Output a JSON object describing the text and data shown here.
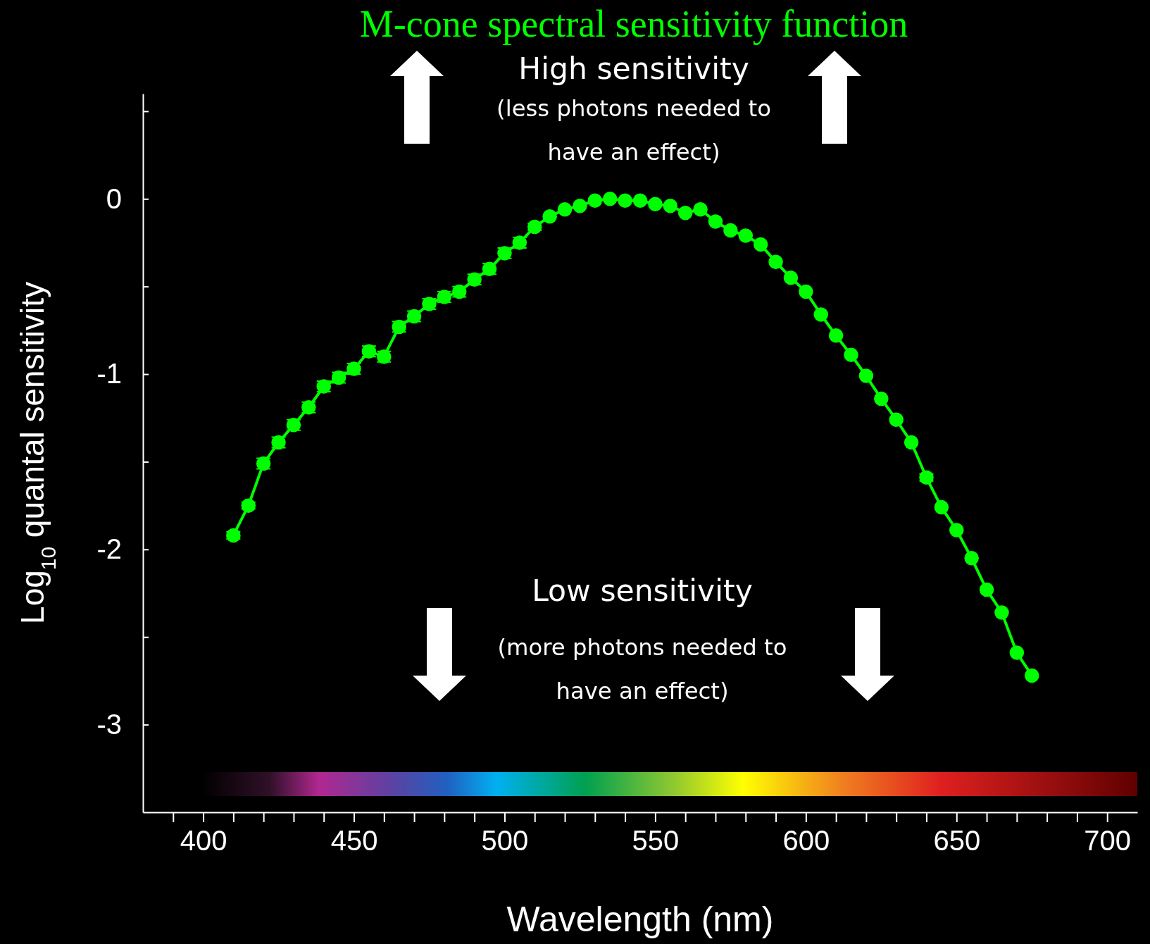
{
  "chart_data": {
    "type": "line",
    "title": "M-cone spectral sensitivity function",
    "xlabel": "Wavelength (nm)",
    "ylabel": "Log$_{10}$ quantal sensitivity",
    "x": [
      410,
      415,
      420,
      425,
      430,
      435,
      440,
      445,
      450,
      455,
      460,
      465,
      470,
      475,
      480,
      485,
      490,
      495,
      500,
      505,
      510,
      515,
      520,
      525,
      530,
      535,
      540,
      545,
      550,
      555,
      560,
      565,
      570,
      575,
      580,
      585,
      590,
      595,
      600,
      605,
      610,
      615,
      620,
      625,
      630,
      635,
      640,
      645,
      650,
      655,
      660,
      665,
      670,
      675
    ],
    "series": [
      {
        "color": "#00ff00",
        "values": [
          -1.92,
          -1.75,
          -1.51,
          -1.39,
          -1.29,
          -1.19,
          -1.07,
          -1.02,
          -0.97,
          -0.87,
          -0.9,
          -0.73,
          -0.67,
          -0.6,
          -0.56,
          -0.53,
          -0.46,
          -0.4,
          -0.31,
          -0.25,
          -0.16,
          -0.1,
          -0.06,
          -0.04,
          -0.01,
          0,
          -0.01,
          -0.01,
          -0.03,
          -0.04,
          -0.08,
          -0.06,
          -0.13,
          -0.18,
          -0.21,
          -0.26,
          -0.36,
          -0.45,
          -0.53,
          -0.66,
          -0.78,
          -0.89,
          -1.01,
          -1.14,
          -1.26,
          -1.39,
          -1.59,
          -1.76,
          -1.89,
          -2.05,
          -2.23,
          -2.36,
          -2.59,
          -2.72
        ],
        "errors": [
          0.02,
          0.02,
          0.03,
          0.03,
          0.03,
          0.03,
          0.03,
          0.03,
          0.03,
          0.03,
          0.03,
          0.03,
          0.03,
          0.03,
          0.03,
          0.03,
          0.03,
          0.03,
          0.03,
          0.03,
          0.02,
          null,
          null,
          null,
          null,
          null,
          null,
          null,
          null,
          null,
          null,
          null,
          null,
          null,
          null,
          null,
          null,
          null,
          null,
          null,
          null,
          null,
          null,
          null,
          null,
          null,
          0.02,
          null,
          null,
          null,
          null,
          null,
          null,
          null
        ]
      }
    ],
    "xlim": [
      380,
      710
    ],
    "ylim": [
      -3.5,
      0.6
    ],
    "xticks": [
      {
        "value": 390,
        "label": null
      },
      {
        "value": 400,
        "label": "400"
      },
      {
        "value": 410,
        "label": null
      },
      {
        "value": 420,
        "label": null
      },
      {
        "value": 430,
        "label": null
      },
      {
        "value": 440,
        "label": null
      },
      {
        "value": 450,
        "label": "450"
      },
      {
        "value": 460,
        "label": null
      },
      {
        "value": 470,
        "label": null
      },
      {
        "value": 480,
        "label": null
      },
      {
        "value": 490,
        "label": null
      },
      {
        "value": 500,
        "label": "500"
      },
      {
        "value": 510,
        "label": null
      },
      {
        "value": 520,
        "label": null
      },
      {
        "value": 530,
        "label": null
      },
      {
        "value": 540,
        "label": null
      },
      {
        "value": 550,
        "label": "550"
      },
      {
        "value": 560,
        "label": null
      },
      {
        "value": 570,
        "label": null
      },
      {
        "value": 580,
        "label": null
      },
      {
        "value": 590,
        "label": null
      },
      {
        "value": 600,
        "label": "600"
      },
      {
        "value": 610,
        "label": null
      },
      {
        "value": 620,
        "label": null
      },
      {
        "value": 630,
        "label": null
      },
      {
        "value": 640,
        "label": null
      },
      {
        "value": 650,
        "label": "650"
      },
      {
        "value": 660,
        "label": null
      },
      {
        "value": 670,
        "label": null
      },
      {
        "value": 680,
        "label": null
      },
      {
        "value": 690,
        "label": null
      },
      {
        "value": 700,
        "label": "700"
      }
    ],
    "yticks": [
      -3,
      {
        "value": -2.5,
        "label": null
      },
      -2,
      {
        "value": -1.5,
        "label": null
      },
      -1,
      {
        "value": -0.5,
        "label": null
      },
      0,
      {
        "value": 0.5,
        "label": null
      }
    ],
    "marker": "circle",
    "line_style": "solid",
    "grid": false,
    "annotations": [
      "High sensitivity",
      "(less photons needed to have an effect)",
      "Low sensitivity",
      "(more photons needed to have an effect)"
    ]
  }
}
